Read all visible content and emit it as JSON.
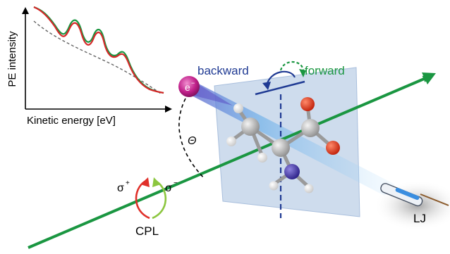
{
  "spectrum": {
    "xlabel": "Kinetic energy [eV]",
    "ylabel": "PE intensity"
  },
  "direction": {
    "backward": "backward",
    "forward": "forward"
  },
  "electron": {
    "label": "e",
    "charge": "−"
  },
  "angle": {
    "symbol": "Θ"
  },
  "polarization": {
    "sigma_plus_base": "σ",
    "sigma_plus_sup": "+",
    "sigma_minus_base": "σ",
    "sigma_minus_sup": "−",
    "light": "CPL"
  },
  "source": {
    "label": "LJ"
  },
  "colors": {
    "forward_green": "#1a9641",
    "backward_blue": "#1f3a93",
    "spectrum_red": "#d62728",
    "electron_magenta": "#c0208a",
    "plane_blue": "#b9cde6"
  }
}
